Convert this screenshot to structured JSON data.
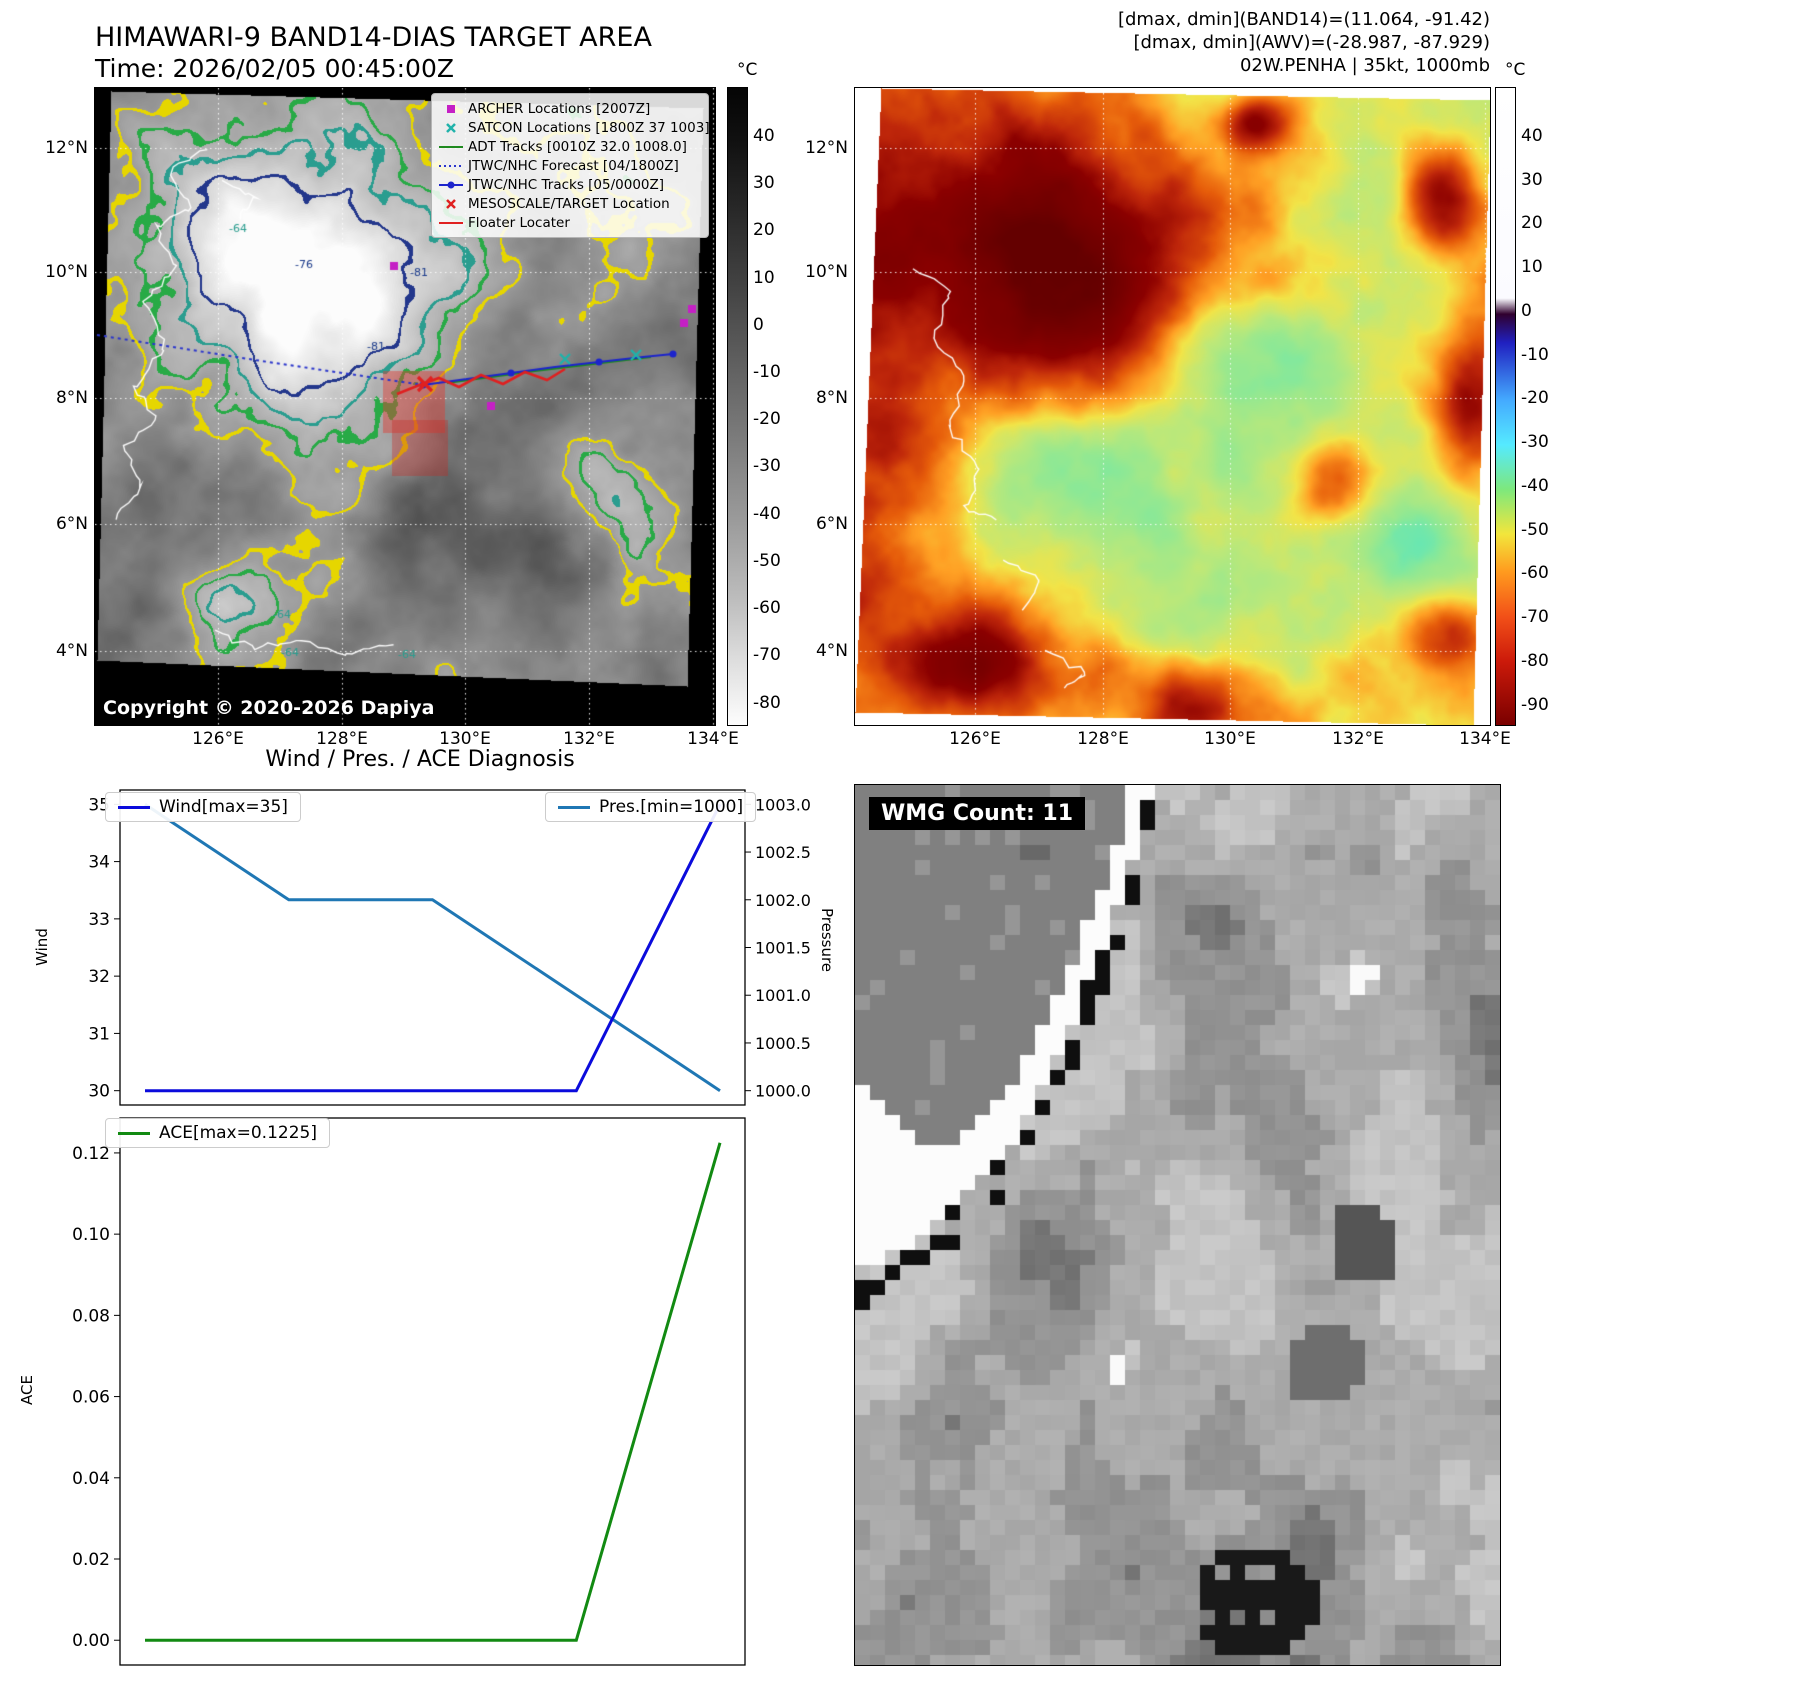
{
  "header": {
    "title": "HIMAWARI-9 BAND14-DIAS TARGET AREA",
    "time": "Time: 2026/02/05 00:45:00Z",
    "annotation_band14": "[dmax, dmin](BAND14)=(11.064, -91.42)",
    "annotation_awv": "[dmax, dmin](AWV)=(-28.987, -87.929)",
    "annotation_storm": "02W.PENHA | 35kt, 1000mb"
  },
  "band14_map": {
    "copyright": "Copyright © 2020-2026 Dapiya",
    "x_ticks": [
      "126°E",
      "128°E",
      "130°E",
      "132°E",
      "134°E"
    ],
    "y_ticks": [
      "12°N",
      "10°N",
      "8°N",
      "6°N",
      "4°N"
    ],
    "contour_labels": [
      "-64",
      "-76",
      "-81"
    ],
    "colorbar": {
      "unit": "°C",
      "ticks": [
        "40",
        "30",
        "20",
        "10",
        "0",
        "-10",
        "-20",
        "-30",
        "-40",
        "-50",
        "-60",
        "-70",
        "-80"
      ]
    },
    "legend": [
      {
        "label": "ARCHER Locations [2007Z]",
        "marker": "square",
        "color": "#c520c5"
      },
      {
        "label": "SATCON Locations [1800Z 37 1003]",
        "marker": "x",
        "color": "#20b2aa"
      },
      {
        "label": "ADT Tracks [0010Z 32.0 1008.0]",
        "marker": "line",
        "color": "#1f8a1f"
      },
      {
        "label": "JTWC/NHC Forecast [04/1800Z]",
        "marker": "dotted",
        "color": "#2a35cc"
      },
      {
        "label": "JTWC/NHC Tracks [05/0000Z]",
        "marker": "line-dot",
        "color": "#1c24cc"
      },
      {
        "label": "MESOSCALE/TARGET Location",
        "marker": "x",
        "color": "#e02020"
      },
      {
        "label": "Floater Locater",
        "marker": "line",
        "color": "#e02020"
      }
    ]
  },
  "awv_map": {
    "x_ticks": [
      "126°E",
      "128°E",
      "130°E",
      "132°E",
      "134°E"
    ],
    "y_ticks": [
      "12°N",
      "10°N",
      "8°N",
      "6°N",
      "4°N"
    ],
    "colorbar": {
      "unit": "°C",
      "ticks": [
        "40",
        "30",
        "20",
        "10",
        "0",
        "-10",
        "-20",
        "-30",
        "-40",
        "-50",
        "-60",
        "-70",
        "-80",
        "-90"
      ]
    }
  },
  "wmg_panel": {
    "label": "WMG Count: 11"
  },
  "chart_data": [
    {
      "type": "line",
      "title": "Wind / Pres. / ACE Diagnosis",
      "x": [
        0,
        1,
        2,
        3,
        4
      ],
      "series": [
        {
          "name": "Wind[max=35]",
          "axis": "left",
          "color": "#0b0bdc",
          "values": [
            30,
            30,
            30,
            30,
            35
          ]
        },
        {
          "name": "Pres.[min=1000]",
          "axis": "right",
          "color": "#1f77b4",
          "values": [
            1003,
            1002,
            1002,
            1001,
            1000
          ]
        }
      ],
      "ylabel_left": "Wind",
      "ylabel_right": "Pressure",
      "ylim_left": [
        30,
        35
      ],
      "ylim_right": [
        1000,
        1003
      ],
      "yticks_left": [
        "30",
        "31",
        "32",
        "33",
        "34",
        "35"
      ],
      "yticks_right": [
        "1000.0",
        "1000.5",
        "1001.0",
        "1001.5",
        "1002.0",
        "1002.5",
        "1003.0"
      ],
      "legend_position": "top",
      "grid": false
    },
    {
      "type": "line",
      "x": [
        0,
        1,
        2,
        3,
        4
      ],
      "series": [
        {
          "name": "ACE[max=0.1225]",
          "color": "#128a12",
          "values": [
            0,
            0,
            0,
            0,
            0.1225
          ]
        }
      ],
      "ylabel": "ACE",
      "ylim": [
        0,
        0.1225
      ],
      "yticks": [
        "0.00",
        "0.02",
        "0.04",
        "0.06",
        "0.08",
        "0.10",
        "0.12"
      ],
      "grid": false
    }
  ]
}
